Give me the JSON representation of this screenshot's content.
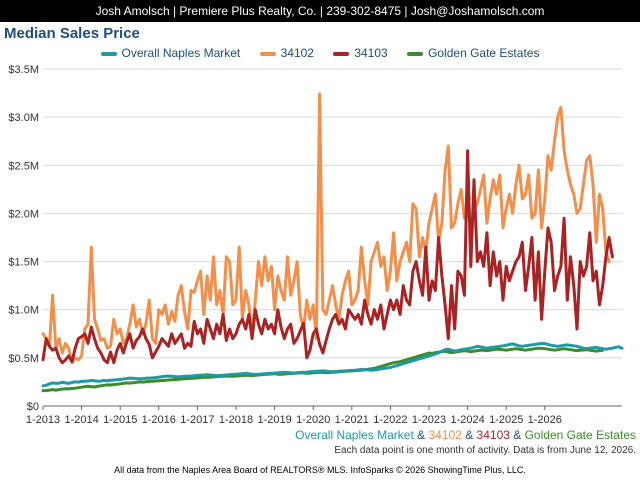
{
  "header": {
    "contact": "Josh Amolsch | Premiere Plus Realty, Co. | 239-302-8475 | Josh@Joshamolsch.com"
  },
  "colors": {
    "overall": "#1e9aa6",
    "z34102": "#f28f4c",
    "z34103": "#a82424",
    "gge": "#3d8c2b"
  },
  "subtitle": {
    "s1": "Overall Naples Market",
    "amp1": " & ",
    "s2": "34102",
    "amp2": " & ",
    "s3": "34103",
    "amp3": " & ",
    "s4": "Golden Gate Estates"
  },
  "note": "Each data point is one month of activity. Data is from June 12, 2026.",
  "footer": "All data from the Naples Area Board of REALTORS® MLS. InfoSparks © 2026 ShowingTime Plus, LLC.",
  "chart_data": {
    "type": "line",
    "title": "Median Sales Price",
    "x_start": "2013-01",
    "x_tick_labels": [
      "1-2013",
      "1-2014",
      "1-2015",
      "1-2016",
      "1-2017",
      "1-2018",
      "1-2019",
      "1-2020",
      "1-2021",
      "1-2022",
      "1-2023",
      "1-2024",
      "1-2025",
      "1-2026"
    ],
    "y_tick_labels": [
      "$0",
      "$0.5M",
      "$1.0M",
      "$1.5M",
      "$2.0M",
      "$2.5M",
      "$3.0M",
      "$3.5M"
    ],
    "ylim": [
      0,
      3500000
    ],
    "grid": true,
    "legend_position": "top",
    "series": [
      {
        "name": "Overall Naples Market",
        "color": "#1e9aa6",
        "values": [
          210000,
          215000,
          230000,
          240000,
          235000,
          238000,
          245000,
          240000,
          235000,
          245000,
          250000,
          248000,
          255000,
          258000,
          260000,
          265000,
          262000,
          258000,
          260000,
          265000,
          262000,
          268000,
          270000,
          272000,
          275000,
          280000,
          285000,
          290000,
          288000,
          285000,
          282000,
          285000,
          288000,
          290000,
          292000,
          295000,
          300000,
          305000,
          310000,
          312000,
          308000,
          305000,
          302000,
          305000,
          308000,
          310000,
          312000,
          315000,
          318000,
          320000,
          322000,
          325000,
          322000,
          318000,
          315000,
          318000,
          320000,
          322000,
          325000,
          328000,
          330000,
          332000,
          335000,
          338000,
          335000,
          330000,
          328000,
          330000,
          332000,
          335000,
          338000,
          340000,
          342000,
          345000,
          348000,
          350000,
          348000,
          345000,
          342000,
          345000,
          348000,
          350000,
          352000,
          355000,
          358000,
          360000,
          362000,
          365000,
          362000,
          358000,
          355000,
          358000,
          360000,
          362000,
          365000,
          368000,
          370000,
          372000,
          375000,
          380000,
          378000,
          375000,
          372000,
          375000,
          380000,
          385000,
          390000,
          395000,
          400000,
          410000,
          420000,
          430000,
          440000,
          450000,
          460000,
          470000,
          480000,
          490000,
          500000,
          510000,
          520000,
          530000,
          540000,
          555000,
          570000,
          585000,
          590000,
          580000,
          570000,
          575000,
          585000,
          590000,
          595000,
          600000,
          610000,
          620000,
          615000,
          605000,
          600000,
          605000,
          610000,
          615000,
          620000,
          625000,
          630000,
          640000,
          645000,
          635000,
          625000,
          620000,
          625000,
          630000,
          635000,
          640000,
          645000,
          650000,
          648000,
          640000,
          630000,
          625000,
          620000,
          625000,
          630000,
          635000,
          630000,
          625000,
          620000,
          610000,
          600000,
          595000,
          600000,
          605000,
          610000,
          600000,
          595000,
          590000,
          595000,
          600000,
          610000,
          615000,
          600000
        ]
      },
      {
        "name": "34102",
        "color": "#f28f4c",
        "values": [
          750000,
          700000,
          620000,
          1150000,
          600000,
          700000,
          550000,
          650000,
          600000,
          450000,
          500000,
          480000,
          520000,
          800000,
          850000,
          1650000,
          900000,
          800000,
          680000,
          700000,
          600000,
          620000,
          900000,
          750000,
          800000,
          650000,
          700000,
          850000,
          1050000,
          820000,
          900000,
          750000,
          850000,
          1100000,
          700000,
          650000,
          1000000,
          950000,
          1050000,
          850000,
          980000,
          880000,
          1150000,
          1250000,
          980000,
          800000,
          1200000,
          1180000,
          1300000,
          1400000,
          950000,
          1350000,
          1100000,
          1550000,
          1050000,
          1200000,
          950000,
          1550000,
          1500000,
          1050000,
          1100000,
          1650000,
          900000,
          1200000,
          1050000,
          750000,
          1100000,
          1500000,
          1250000,
          1550000,
          1300000,
          1450000,
          1000000,
          1350000,
          1200000,
          1100000,
          1550000,
          1150000,
          1300000,
          1500000,
          950000,
          800000,
          1100000,
          900000,
          1050000,
          700000,
          3240000,
          1000000,
          950000,
          1100000,
          1250000,
          1050000,
          900000,
          1150000,
          1300000,
          1400000,
          1050000,
          1100000,
          1200000,
          1650000,
          1300000,
          1050000,
          1500000,
          1600000,
          1700000,
          1450000,
          1550000,
          1200000,
          1400000,
          1800000,
          1300000,
          1500000,
          1600000,
          1700000,
          1500000,
          2100000,
          2050000,
          1550000,
          1750000,
          1600000,
          1900000,
          2050000,
          2200000,
          1700000,
          1900000,
          2450000,
          2700000,
          1850000,
          1900000,
          2100000,
          2250000,
          1950000,
          2050000,
          1850000,
          2050000,
          2100000,
          2250000,
          2400000,
          1900000,
          2150000,
          2350000,
          2200000,
          2400000,
          1850000,
          2050000,
          2200000,
          2000000,
          2300000,
          2500000,
          2150000,
          2200000,
          2400000,
          1950000,
          2000000,
          2450000,
          1850000,
          2150000,
          2600000,
          2450000,
          2750000,
          3000000,
          3100000,
          2650000,
          2450000,
          2300000,
          2200000,
          2000000,
          2050000,
          2300000,
          2550000,
          2600000,
          2300000,
          1700000,
          2200000,
          2050000,
          1600000,
          1500000
        ]
      },
      {
        "name": "34103",
        "color": "#a82424",
        "values": [
          480000,
          700000,
          620000,
          580000,
          600000,
          500000,
          450000,
          480000,
          520000,
          460000,
          600000,
          700000,
          720000,
          750000,
          650000,
          820000,
          700000,
          600000,
          550000,
          480000,
          450000,
          560000,
          450000,
          580000,
          650000,
          550000,
          660000,
          750000,
          600000,
          680000,
          720000,
          800000,
          700000,
          640000,
          500000,
          560000,
          620000,
          700000,
          660000,
          620000,
          750000,
          650000,
          700000,
          750000,
          600000,
          650000,
          620000,
          880000,
          750000,
          800000,
          650000,
          900000,
          800000,
          700000,
          850000,
          750000,
          950000,
          680000,
          800000,
          700000,
          750000,
          850000,
          900000,
          800000,
          950000,
          700000,
          1000000,
          850000,
          750000,
          900000,
          800000,
          850000,
          750000,
          1000000,
          820000,
          700000,
          800000,
          850000,
          650000,
          700000,
          780000,
          860000,
          500000,
          580000,
          750000,
          800000,
          640000,
          550000,
          680000,
          800000,
          900000,
          950000,
          850000,
          900000,
          800000,
          1000000,
          950000,
          900000,
          950000,
          850000,
          1100000,
          950000,
          850000,
          1000000,
          900000,
          1050000,
          800000,
          950000,
          1100000,
          1000000,
          1100000,
          950000,
          1250000,
          1100000,
          1050000,
          1400000,
          1500000,
          1300000,
          1150000,
          1650000,
          1100000,
          1300000,
          1200000,
          1750000,
          1350000,
          1050000,
          700000,
          1250000,
          800000,
          1400000,
          1350000,
          1150000,
          2650000,
          1450000,
          2350000,
          1500000,
          1600000,
          1450000,
          1800000,
          1250000,
          1600000,
          1350000,
          1500000,
          1100000,
          1450000,
          1300000,
          1400000,
          1500000,
          1550000,
          1700000,
          1200000,
          1450000,
          1750000,
          1100000,
          1600000,
          900000,
          1400000,
          1850000,
          1700000,
          1200000,
          1350000,
          1450000,
          1950000,
          1100000,
          1550000,
          1250000,
          800000,
          1500000,
          1350000,
          1450000,
          1800000,
          1300000,
          1400000,
          1050000,
          1250000,
          1550000,
          1750000,
          1550000
        ]
      },
      {
        "name": "Golden Gate Estates",
        "color": "#3d8c2b",
        "values": [
          160000,
          160000,
          165000,
          170000,
          165000,
          170000,
          175000,
          180000,
          178000,
          182000,
          185000,
          190000,
          195000,
          200000,
          205000,
          200000,
          198000,
          205000,
          210000,
          215000,
          220000,
          218000,
          222000,
          225000,
          230000,
          235000,
          240000,
          238000,
          242000,
          245000,
          250000,
          248000,
          252000,
          255000,
          258000,
          260000,
          262000,
          265000,
          268000,
          270000,
          272000,
          275000,
          278000,
          280000,
          282000,
          285000,
          288000,
          290000,
          292000,
          295000,
          298000,
          300000,
          298000,
          302000,
          305000,
          308000,
          310000,
          312000,
          310000,
          308000,
          312000,
          315000,
          318000,
          320000,
          318000,
          316000,
          320000,
          322000,
          325000,
          328000,
          330000,
          332000,
          335000,
          330000,
          328000,
          332000,
          335000,
          338000,
          340000,
          342000,
          345000,
          343000,
          340000,
          342000,
          345000,
          348000,
          350000,
          348000,
          346000,
          348000,
          350000,
          352000,
          355000,
          358000,
          360000,
          362000,
          365000,
          368000,
          370000,
          372000,
          375000,
          380000,
          385000,
          390000,
          400000,
          410000,
          420000,
          430000,
          440000,
          450000,
          455000,
          460000,
          470000,
          480000,
          490000,
          500000,
          510000,
          520000,
          530000,
          540000,
          550000,
          545000,
          555000,
          560000,
          565000,
          570000,
          560000,
          555000,
          560000,
          565000,
          570000,
          575000,
          570000,
          565000,
          570000,
          575000,
          580000,
          578000,
          575000,
          580000,
          585000,
          590000,
          588000,
          585000,
          580000,
          585000,
          590000,
          595000,
          590000,
          585000,
          580000,
          585000,
          590000,
          595000,
          600000,
          598000,
          595000,
          590000,
          585000,
          580000,
          585000,
          590000,
          595000,
          590000,
          585000,
          580000,
          575000,
          578000,
          582000,
          585000,
          580000,
          575000,
          570000,
          575000,
          580000
        ]
      }
    ]
  }
}
